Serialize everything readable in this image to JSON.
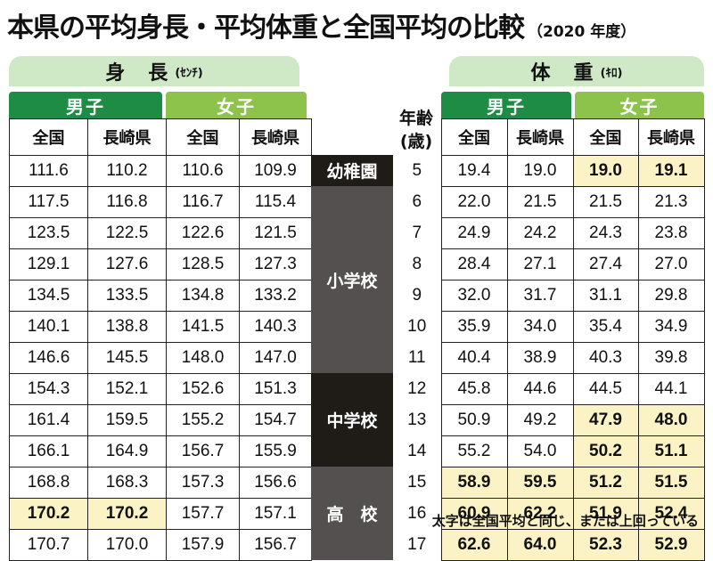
{
  "title": "本県の平均身長・平均体重と全国平均の比較",
  "year_note": "（2020 年度）",
  "height": {
    "label": "身　長",
    "unit": "(ｾﾝﾁ)"
  },
  "weight": {
    "label": "体　重",
    "unit": "(ｷﾛ)"
  },
  "groups": {
    "male": "男子",
    "female": "女子"
  },
  "columns": {
    "national": "全国",
    "nagasaki": "長崎県"
  },
  "age_label": [
    "年齢",
    "(歳)"
  ],
  "schools": [
    {
      "name": "幼稚園",
      "rows": 1,
      "style": "dark"
    },
    {
      "name": "小学校",
      "rows": 6,
      "style": "gray"
    },
    {
      "name": "中学校",
      "rows": 3,
      "style": "dark"
    },
    {
      "name": "高　校",
      "rows": 3,
      "style": "gray"
    }
  ],
  "rows": [
    {
      "age": "5",
      "h_m_n": "111.6",
      "h_m_l": "110.2",
      "h_f_n": "110.6",
      "h_f_l": "109.9",
      "w_m_n": "19.4",
      "w_m_l": "19.0",
      "w_f_n": "19.0",
      "w_f_l": "19.1"
    },
    {
      "age": "6",
      "h_m_n": "117.5",
      "h_m_l": "116.8",
      "h_f_n": "116.7",
      "h_f_l": "115.4",
      "w_m_n": "22.0",
      "w_m_l": "21.5",
      "w_f_n": "21.5",
      "w_f_l": "21.3"
    },
    {
      "age": "7",
      "h_m_n": "123.5",
      "h_m_l": "122.5",
      "h_f_n": "122.6",
      "h_f_l": "121.5",
      "w_m_n": "24.9",
      "w_m_l": "24.2",
      "w_f_n": "24.3",
      "w_f_l": "23.8"
    },
    {
      "age": "8",
      "h_m_n": "129.1",
      "h_m_l": "127.6",
      "h_f_n": "128.5",
      "h_f_l": "127.3",
      "w_m_n": "28.4",
      "w_m_l": "27.1",
      "w_f_n": "27.4",
      "w_f_l": "27.0"
    },
    {
      "age": "9",
      "h_m_n": "134.5",
      "h_m_l": "133.5",
      "h_f_n": "134.8",
      "h_f_l": "133.2",
      "w_m_n": "32.0",
      "w_m_l": "31.7",
      "w_f_n": "31.1",
      "w_f_l": "29.8"
    },
    {
      "age": "10",
      "h_m_n": "140.1",
      "h_m_l": "138.8",
      "h_f_n": "141.5",
      "h_f_l": "140.3",
      "w_m_n": "35.9",
      "w_m_l": "34.0",
      "w_f_n": "35.4",
      "w_f_l": "34.9"
    },
    {
      "age": "11",
      "h_m_n": "146.6",
      "h_m_l": "145.5",
      "h_f_n": "148.0",
      "h_f_l": "147.0",
      "w_m_n": "40.4",
      "w_m_l": "38.9",
      "w_f_n": "40.3",
      "w_f_l": "39.8"
    },
    {
      "age": "12",
      "h_m_n": "154.3",
      "h_m_l": "152.1",
      "h_f_n": "152.6",
      "h_f_l": "151.3",
      "w_m_n": "45.8",
      "w_m_l": "44.6",
      "w_f_n": "44.5",
      "w_f_l": "44.1"
    },
    {
      "age": "13",
      "h_m_n": "161.4",
      "h_m_l": "159.5",
      "h_f_n": "155.2",
      "h_f_l": "154.7",
      "w_m_n": "50.9",
      "w_m_l": "49.2",
      "w_f_n": "47.9",
      "w_f_l": "48.0"
    },
    {
      "age": "14",
      "h_m_n": "166.1",
      "h_m_l": "164.9",
      "h_f_n": "156.7",
      "h_f_l": "155.9",
      "w_m_n": "55.2",
      "w_m_l": "54.0",
      "w_f_n": "50.2",
      "w_f_l": "51.1"
    },
    {
      "age": "15",
      "h_m_n": "168.8",
      "h_m_l": "168.3",
      "h_f_n": "157.3",
      "h_f_l": "156.6",
      "w_m_n": "58.9",
      "w_m_l": "59.5",
      "w_f_n": "51.2",
      "w_f_l": "51.5"
    },
    {
      "age": "16",
      "h_m_n": "170.2",
      "h_m_l": "170.2",
      "h_f_n": "157.7",
      "h_f_l": "157.1",
      "w_m_n": "60.9",
      "w_m_l": "62.2",
      "w_f_n": "51.9",
      "w_f_l": "52.4"
    },
    {
      "age": "17",
      "h_m_n": "170.7",
      "h_m_l": "170.0",
      "h_f_n": "157.9",
      "h_f_l": "156.7",
      "w_m_n": "62.6",
      "w_m_l": "64.0",
      "w_f_n": "52.3",
      "w_f_l": "52.9"
    }
  ],
  "bold_cells": {
    "height": [
      [
        11,
        "h_m_n"
      ],
      [
        11,
        "h_m_l"
      ]
    ],
    "weight": [
      [
        0,
        "w_f_n"
      ],
      [
        0,
        "w_f_l"
      ],
      [
        8,
        "w_f_n"
      ],
      [
        8,
        "w_f_l"
      ],
      [
        9,
        "w_f_n"
      ],
      [
        9,
        "w_f_l"
      ],
      [
        10,
        "w_m_n"
      ],
      [
        10,
        "w_m_l"
      ],
      [
        10,
        "w_f_n"
      ],
      [
        10,
        "w_f_l"
      ],
      [
        11,
        "w_m_n"
      ],
      [
        11,
        "w_m_l"
      ],
      [
        11,
        "w_f_n"
      ],
      [
        11,
        "w_f_l"
      ],
      [
        12,
        "w_m_n"
      ],
      [
        12,
        "w_m_l"
      ],
      [
        12,
        "w_f_n"
      ],
      [
        12,
        "w_f_l"
      ]
    ]
  },
  "footnote": "太字は全国平均と同じ、または上回っている"
}
